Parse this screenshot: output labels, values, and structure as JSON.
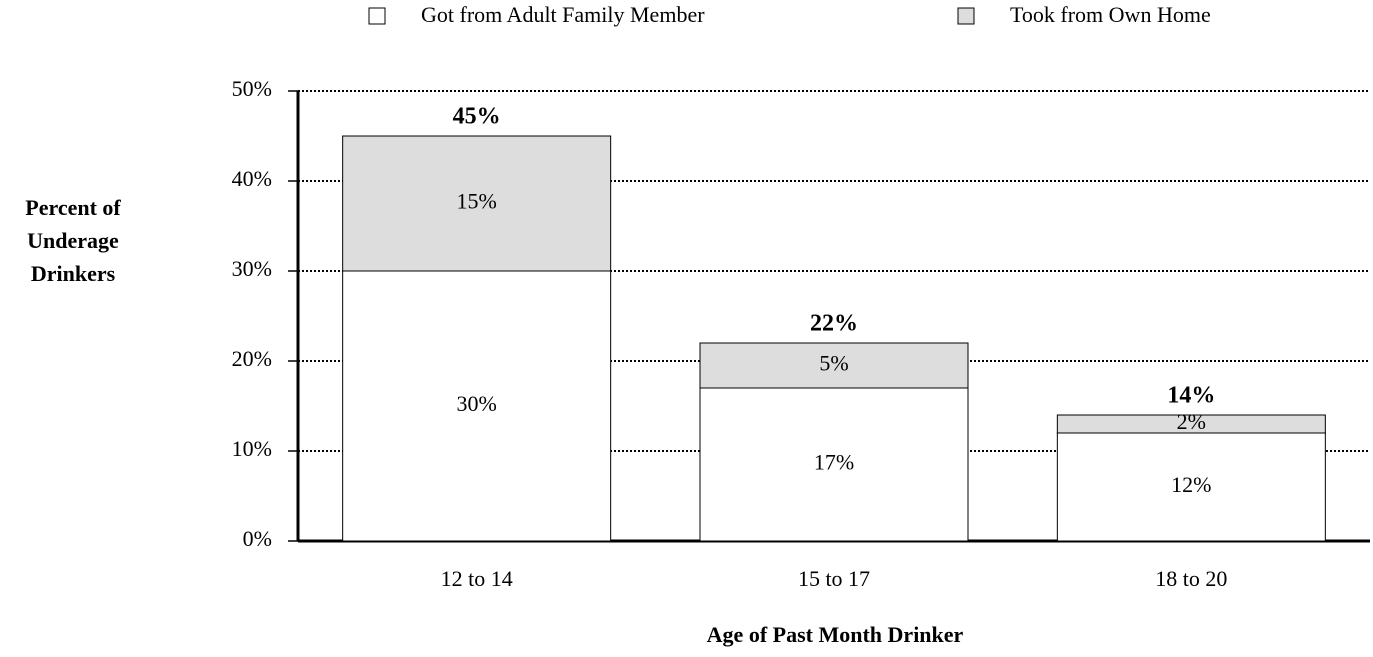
{
  "chart_data": {
    "type": "stacked_bar",
    "x_label": "Age of Past Month Drinker",
    "y_label": [
      "Percent of",
      "Underage",
      "Drinkers"
    ],
    "categories": [
      "12 to 14",
      "15 to 17",
      "18 to 20"
    ],
    "series": [
      {
        "name": "Got from Adult Family Member",
        "color": "#ffffff",
        "values": [
          30,
          17,
          12
        ],
        "value_labels": [
          "30%",
          "17%",
          "12%"
        ]
      },
      {
        "name": "Took from Own Home",
        "color": "#dddddd",
        "values": [
          15,
          5,
          2
        ],
        "value_labels": [
          "15%",
          "5%",
          "2%"
        ]
      }
    ],
    "totals": {
      "values": [
        45,
        22,
        14
      ],
      "value_labels": [
        "45%",
        "22%",
        "14%"
      ]
    },
    "ylim": [
      0,
      50
    ],
    "yticks": [
      {
        "value": 0,
        "label": "0%"
      },
      {
        "value": 10,
        "label": "10%"
      },
      {
        "value": 20,
        "label": "20%"
      },
      {
        "value": 30,
        "label": "30%"
      },
      {
        "value": 40,
        "label": "40%"
      },
      {
        "value": 50,
        "label": "50%"
      }
    ],
    "grid": true,
    "legend": "top"
  }
}
